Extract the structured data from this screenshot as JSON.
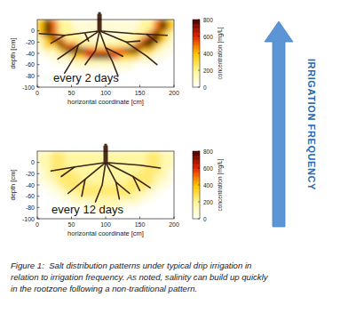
{
  "chart_data": [
    {
      "type": "heatmap",
      "annotation": "every 2 days",
      "x_label": "horizontal coordinate [cm]",
      "y_label": "depth [cm]",
      "xlim": [
        0,
        200
      ],
      "ylim": [
        -100,
        20
      ],
      "xticks": [
        0,
        50,
        100,
        150,
        200
      ],
      "yticks": [
        -100,
        -80,
        -60,
        -40,
        -20,
        0
      ],
      "x": [
        5,
        15,
        25,
        35,
        45,
        55,
        65,
        75,
        85,
        95,
        105,
        115,
        125,
        135,
        145,
        155,
        165,
        175,
        185,
        195
      ],
      "y": [
        15,
        5,
        -5,
        -15,
        -25,
        -35,
        -45,
        -55,
        -65,
        -75,
        -85,
        -95
      ],
      "cells": [
        [
          400,
          800,
          500,
          200,
          200,
          80,
          80,
          80,
          80,
          80,
          80,
          80,
          80,
          80,
          80,
          200,
          200,
          500,
          800,
          400
        ],
        [
          400,
          800,
          500,
          200,
          200,
          80,
          80,
          80,
          80,
          80,
          80,
          80,
          80,
          80,
          80,
          200,
          200,
          500,
          800,
          400
        ],
        [
          400,
          800,
          500,
          200,
          200,
          200,
          80,
          80,
          80,
          80,
          80,
          80,
          80,
          80,
          200,
          200,
          500,
          800,
          400,
          150
        ],
        [
          150,
          400,
          800,
          500,
          200,
          200,
          200,
          80,
          80,
          80,
          80,
          80,
          200,
          200,
          200,
          500,
          800,
          800,
          400,
          150
        ],
        [
          150,
          400,
          400,
          800,
          500,
          500,
          200,
          200,
          200,
          200,
          200,
          200,
          200,
          200,
          500,
          800,
          800,
          400,
          150,
          60
        ],
        [
          60,
          150,
          150,
          400,
          800,
          800,
          800,
          600,
          500,
          500,
          500,
          500,
          600,
          800,
          800,
          400,
          400,
          150,
          60,
          60
        ],
        [
          0,
          60,
          60,
          150,
          150,
          400,
          400,
          600,
          800,
          800,
          800,
          600,
          400,
          400,
          400,
          150,
          150,
          60,
          60,
          0
        ],
        [
          0,
          0,
          60,
          60,
          60,
          150,
          150,
          150,
          150,
          150,
          150,
          150,
          150,
          150,
          60,
          60,
          60,
          0,
          0,
          0
        ],
        [
          0,
          0,
          0,
          0,
          0,
          60,
          60,
          60,
          60,
          60,
          60,
          60,
          60,
          60,
          0,
          0,
          0,
          0,
          0,
          0
        ],
        [
          0,
          0,
          0,
          0,
          0,
          0,
          0,
          0,
          0,
          0,
          0,
          0,
          0,
          0,
          0,
          0,
          0,
          0,
          0,
          0
        ],
        [
          0,
          0,
          0,
          0,
          0,
          0,
          0,
          0,
          0,
          0,
          0,
          0,
          0,
          0,
          0,
          0,
          0,
          0,
          0,
          0
        ],
        [
          0,
          0,
          0,
          0,
          0,
          0,
          0,
          0,
          0,
          0,
          0,
          0,
          0,
          0,
          0,
          0,
          0,
          0,
          0,
          0
        ]
      ],
      "colorbar": {
        "label": "concentration [mg/L]",
        "range": [
          0,
          800
        ],
        "ticks": [
          0,
          200,
          400,
          600,
          800
        ]
      },
      "roots": [
        [
          [
            91,
            0
          ],
          [
            40,
            -8
          ],
          [
            3,
            -5
          ]
        ],
        [
          [
            40,
            -8
          ],
          [
            20,
            -22
          ]
        ],
        [
          [
            91,
            0
          ],
          [
            60,
            -25
          ],
          [
            30,
            -50
          ]
        ],
        [
          [
            60,
            -25
          ],
          [
            55,
            -45
          ],
          [
            40,
            -75
          ]
        ],
        [
          [
            91,
            0
          ],
          [
            85,
            -35
          ],
          [
            70,
            -60
          ]
        ],
        [
          [
            91,
            0
          ],
          [
            100,
            -30
          ],
          [
            110,
            -55
          ],
          [
            118,
            -80
          ]
        ],
        [
          [
            91,
            0
          ],
          [
            130,
            -20
          ],
          [
            160,
            -45
          ],
          [
            175,
            -60
          ]
        ],
        [
          [
            130,
            -20
          ],
          [
            150,
            -18
          ]
        ],
        [
          [
            91,
            0
          ],
          [
            140,
            -5
          ],
          [
            190,
            -8
          ]
        ],
        [
          [
            160,
            -6
          ],
          [
            175,
            -20
          ]
        ],
        [
          [
            100,
            -30
          ],
          [
            125,
            -45
          ]
        ],
        [
          [
            70,
            -5
          ],
          [
            75,
            -18
          ]
        ]
      ]
    },
    {
      "type": "heatmap",
      "annotation": "every 12 days",
      "x_label": "horizontal coordinate [cm]",
      "y_label": "depth [cm]",
      "xlim": [
        0,
        200
      ],
      "ylim": [
        -100,
        20
      ],
      "xticks": [
        0,
        50,
        100,
        150,
        200
      ],
      "yticks": [
        -100,
        -80,
        -60,
        -40,
        -20,
        0
      ],
      "x": [
        5,
        15,
        25,
        35,
        45,
        55,
        65,
        75,
        85,
        95,
        105,
        115,
        125,
        135,
        145,
        155,
        165,
        175,
        185,
        195
      ],
      "y": [
        15,
        5,
        -5,
        -15,
        -25,
        -35,
        -45,
        -55,
        -65,
        -75,
        -85,
        -95
      ],
      "cells": [
        [
          150,
          150,
          250,
          250,
          180,
          180,
          180,
          180,
          180,
          180,
          180,
          180,
          180,
          180,
          180,
          180,
          250,
          250,
          150,
          150
        ],
        [
          150,
          150,
          250,
          250,
          180,
          180,
          180,
          180,
          180,
          180,
          180,
          180,
          180,
          180,
          180,
          180,
          250,
          250,
          150,
          150
        ],
        [
          150,
          150,
          250,
          250,
          180,
          180,
          180,
          180,
          180,
          180,
          180,
          180,
          180,
          180,
          180,
          180,
          250,
          250,
          150,
          150
        ],
        [
          60,
          150,
          250,
          250,
          250,
          180,
          180,
          180,
          180,
          180,
          180,
          180,
          180,
          180,
          180,
          250,
          250,
          250,
          150,
          60
        ],
        [
          60,
          150,
          150,
          250,
          250,
          250,
          180,
          180,
          180,
          180,
          180,
          180,
          180,
          180,
          250,
          250,
          250,
          150,
          150,
          60
        ],
        [
          60,
          60,
          150,
          250,
          250,
          250,
          250,
          180,
          180,
          180,
          180,
          180,
          180,
          250,
          250,
          250,
          250,
          150,
          60,
          60
        ],
        [
          0,
          60,
          60,
          150,
          250,
          250,
          250,
          250,
          250,
          250,
          250,
          250,
          250,
          250,
          250,
          250,
          150,
          60,
          60,
          0
        ],
        [
          0,
          0,
          60,
          60,
          150,
          150,
          250,
          250,
          250,
          250,
          250,
          250,
          250,
          250,
          150,
          150,
          60,
          60,
          0,
          0
        ],
        [
          0,
          0,
          0,
          60,
          60,
          150,
          150,
          150,
          150,
          150,
          150,
          150,
          150,
          150,
          150,
          60,
          60,
          0,
          0,
          0
        ],
        [
          0,
          0,
          0,
          0,
          0,
          60,
          60,
          60,
          150,
          150,
          150,
          150,
          60,
          60,
          60,
          0,
          0,
          0,
          0,
          0
        ],
        [
          0,
          0,
          0,
          0,
          0,
          0,
          0,
          60,
          60,
          60,
          60,
          60,
          60,
          0,
          0,
          0,
          0,
          0,
          0,
          0
        ],
        [
          0,
          0,
          0,
          0,
          0,
          0,
          0,
          0,
          0,
          0,
          0,
          0,
          0,
          0,
          0,
          0,
          0,
          0,
          0,
          0
        ]
      ],
      "colorbar": {
        "label": "concentration [mg/L]",
        "range": [
          0,
          800
        ],
        "ticks": [
          0,
          200,
          400,
          600,
          800
        ]
      },
      "roots": [
        [
          [
            100,
            0
          ],
          [
            55,
            -8
          ],
          [
            20,
            -15
          ]
        ],
        [
          [
            55,
            -8
          ],
          [
            35,
            -25
          ]
        ],
        [
          [
            100,
            0
          ],
          [
            70,
            -30
          ],
          [
            45,
            -55
          ]
        ],
        [
          [
            70,
            -30
          ],
          [
            65,
            -60
          ]
        ],
        [
          [
            100,
            0
          ],
          [
            95,
            -40
          ],
          [
            85,
            -70
          ]
        ],
        [
          [
            100,
            0
          ],
          [
            115,
            -35
          ],
          [
            120,
            -65
          ]
        ],
        [
          [
            100,
            0
          ],
          [
            140,
            -25
          ],
          [
            165,
            -45
          ]
        ],
        [
          [
            140,
            -25
          ],
          [
            150,
            -50
          ]
        ],
        [
          [
            100,
            0
          ],
          [
            150,
            -5
          ],
          [
            180,
            -10
          ]
        ],
        [
          [
            115,
            -35
          ],
          [
            135,
            -55
          ]
        ]
      ]
    }
  ],
  "side_label": "IRRIGATION FREQUENCY",
  "caption": [
    "Figure 1:  Salt distribution patterns under typical drip irrigation in",
    "relation to irrigation frequency. As noted, salinity can build up quickly",
    "in the rootzone following a non-traditional pattern."
  ]
}
